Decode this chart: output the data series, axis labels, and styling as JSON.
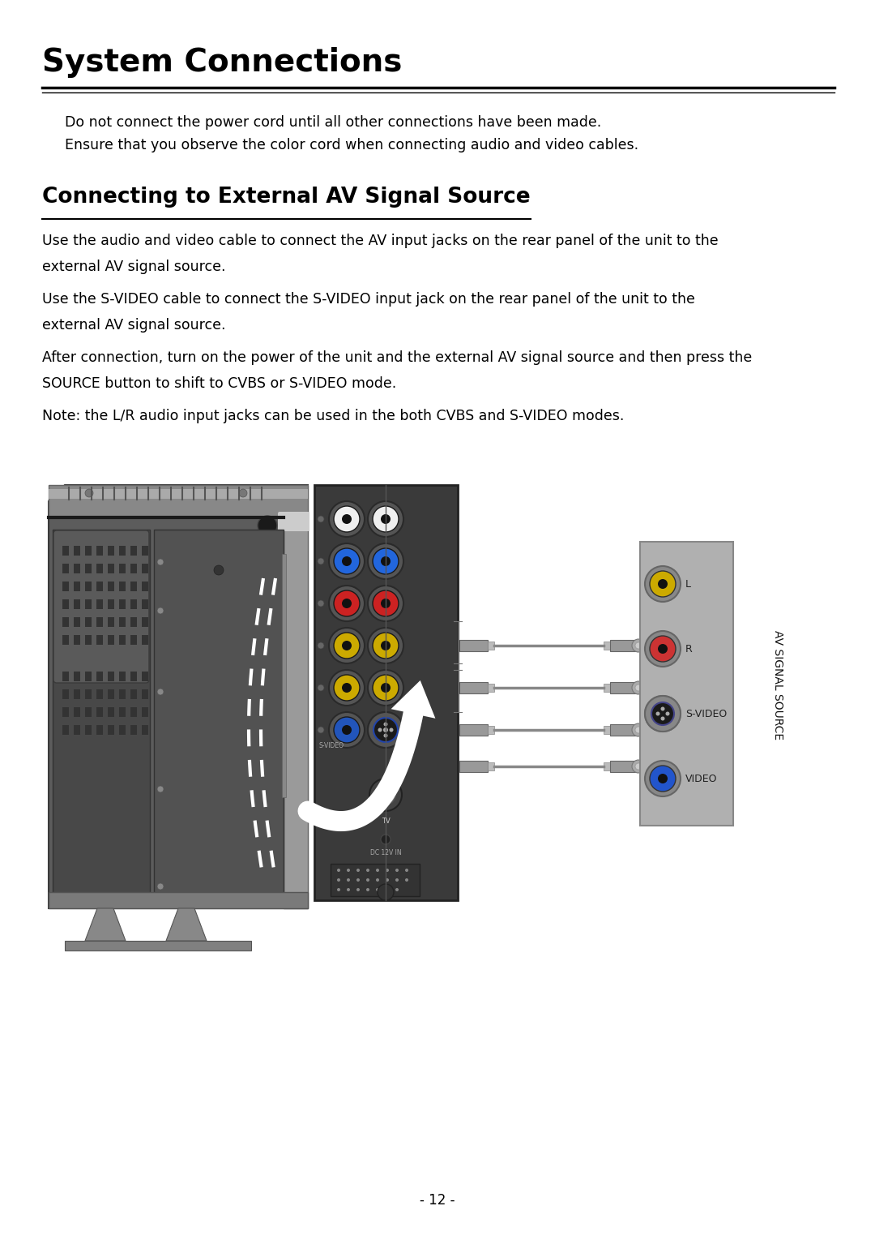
{
  "title": "System Connections",
  "title_fontsize": 28,
  "bg_color": "#ffffff",
  "text_color": "#000000",
  "bullet1": "Do not connect the power cord until all other connections have been made.",
  "bullet2": "Ensure that you observe the color cord when connecting audio and video cables.",
  "section2_title": "Connecting to External AV Signal Source",
  "section2_title_fontsize": 19,
  "body_fontsize": 12.5,
  "para1_line1": "Use the audio and video cable to connect the AV input jacks on the rear panel of the unit to the",
  "para1_line2": "external AV signal source.",
  "para2_line1": "Use the S-VIDEO cable to connect the S-VIDEO input jack on the rear panel of the unit to the",
  "para2_line2": "external AV signal source.",
  "para3_line1": "After connection, turn on the power of the unit and the external AV signal source and then press the",
  "para3_line2": "SOURCE button to shift to CVBS or S-VIDEO mode.",
  "para4": "Note: the L/R audio input jacks can be used in the both CVBS and S-VIDEO modes.",
  "page_number": "- 12 -"
}
